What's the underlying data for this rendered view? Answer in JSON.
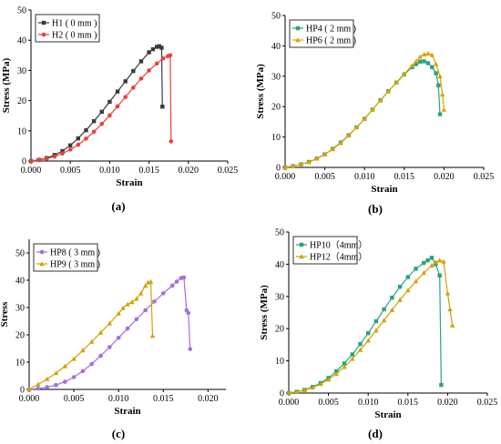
{
  "chart_data": [
    {
      "panel": "a",
      "caption": "(a)",
      "type": "line",
      "xlabel": "Strain",
      "ylabel": "Stress (MPa)",
      "xlim": [
        0,
        0.025
      ],
      "ylim": [
        0,
        50
      ],
      "xticks": [
        "0.000",
        "0.005",
        "0.010",
        "0.015",
        "0.020",
        "0.025"
      ],
      "yticks": [
        "0",
        "10",
        "20",
        "30",
        "40",
        "50"
      ],
      "legend_position": "top-left",
      "series": [
        {
          "name": "H1 ( 0 mm )",
          "color": "#3a3a3a",
          "marker": "square",
          "x": [
            0,
            0.001,
            0.002,
            0.003,
            0.004,
            0.005,
            0.006,
            0.007,
            0.008,
            0.009,
            0.01,
            0.011,
            0.012,
            0.013,
            0.014,
            0.015,
            0.0155,
            0.016,
            0.0163,
            0.0166,
            0.0167
          ],
          "y": [
            0,
            0.4,
            1.0,
            2.0,
            3.3,
            5.2,
            7.5,
            10.2,
            13.2,
            16.3,
            19.6,
            23.0,
            26.4,
            29.8,
            33.0,
            36.0,
            37.0,
            37.8,
            38.0,
            37.5,
            18.0
          ]
        },
        {
          "name": "H2 ( 0 mm )",
          "color": "#e8403a",
          "marker": "circle",
          "x": [
            0,
            0.001,
            0.002,
            0.003,
            0.004,
            0.005,
            0.006,
            0.007,
            0.008,
            0.009,
            0.01,
            0.011,
            0.012,
            0.013,
            0.014,
            0.015,
            0.016,
            0.0168,
            0.0174,
            0.0177,
            0.0178
          ],
          "y": [
            0,
            0.3,
            0.8,
            1.5,
            2.5,
            3.8,
            5.4,
            7.4,
            9.7,
            12.3,
            15.1,
            18.1,
            21.2,
            24.3,
            27.3,
            30.0,
            32.3,
            34.0,
            34.7,
            35.0,
            6.5
          ]
        }
      ]
    },
    {
      "panel": "b",
      "caption": "(b)",
      "type": "line",
      "xlabel": "Strain",
      "ylabel": "Stress (MPa)",
      "xlim": [
        0,
        0.025
      ],
      "ylim": [
        0,
        50
      ],
      "xticks": [
        "0.000",
        "0.005",
        "0.010",
        "0.015",
        "0.020",
        "0.025"
      ],
      "yticks": [
        "0",
        "10",
        "20",
        "30",
        "40",
        "50"
      ],
      "legend_position": "top-left",
      "series": [
        {
          "name": "HP4 ( 2 mm )",
          "color": "#26a67a",
          "marker": "square",
          "x": [
            0,
            0.001,
            0.002,
            0.003,
            0.004,
            0.005,
            0.006,
            0.007,
            0.008,
            0.009,
            0.01,
            0.011,
            0.012,
            0.013,
            0.014,
            0.015,
            0.016,
            0.0165,
            0.017,
            0.0175,
            0.018,
            0.0185,
            0.019,
            0.0193,
            0.0195
          ],
          "y": [
            0,
            0.4,
            1.0,
            1.8,
            2.9,
            4.3,
            6.1,
            8.2,
            10.6,
            13.2,
            16.0,
            19.0,
            22.1,
            25.1,
            27.9,
            30.6,
            33.0,
            34.0,
            34.8,
            34.9,
            34.3,
            33.0,
            31.0,
            27.0,
            17.5
          ]
        },
        {
          "name": "HP6 ( 2 mm )",
          "color": "#e0a100",
          "marker": "triangle",
          "x": [
            0,
            0.001,
            0.002,
            0.003,
            0.004,
            0.005,
            0.006,
            0.007,
            0.008,
            0.009,
            0.01,
            0.011,
            0.012,
            0.013,
            0.014,
            0.015,
            0.016,
            0.0165,
            0.017,
            0.0175,
            0.018,
            0.0185,
            0.019,
            0.0195,
            0.0198,
            0.02
          ],
          "y": [
            0,
            0.4,
            1.0,
            1.8,
            2.9,
            4.3,
            6.0,
            8.0,
            10.5,
            13.2,
            16.0,
            19.0,
            22.0,
            25.0,
            28.0,
            30.8,
            33.5,
            35.0,
            36.4,
            37.2,
            37.5,
            37.0,
            34.0,
            30.0,
            24.0,
            19.0
          ]
        }
      ]
    },
    {
      "panel": "c",
      "caption": "(c)",
      "type": "line",
      "xlabel": "Strain",
      "ylabel": "Stress",
      "xlim": [
        0,
        0.022
      ],
      "ylim": [
        0,
        55
      ],
      "xticks": [
        "0.000",
        "0.005",
        "0.010",
        "0.015",
        "0.020"
      ],
      "yticks": [
        "0",
        "10",
        "20",
        "30",
        "40",
        "50"
      ],
      "legend_position": "top-left",
      "series": [
        {
          "name": "HP8 ( 3 mm )",
          "color": "#a66ee0",
          "marker": "circle",
          "x": [
            0,
            0.001,
            0.002,
            0.003,
            0.004,
            0.005,
            0.006,
            0.007,
            0.008,
            0.009,
            0.01,
            0.011,
            0.012,
            0.013,
            0.014,
            0.015,
            0.016,
            0.0165,
            0.017,
            0.0173,
            0.0176,
            0.0178,
            0.018
          ],
          "y": [
            0,
            0.3,
            0.8,
            1.6,
            2.8,
            4.5,
            6.7,
            9.3,
            12.3,
            15.5,
            18.9,
            22.3,
            25.7,
            29.0,
            32.2,
            35.2,
            38.0,
            39.5,
            40.8,
            41.0,
            29.0,
            28.0,
            14.8
          ]
        },
        {
          "name": "HP9 ( 3 mm )",
          "color": "#d6a000",
          "marker": "triangle",
          "x": [
            0,
            0.001,
            0.002,
            0.003,
            0.004,
            0.005,
            0.006,
            0.007,
            0.008,
            0.009,
            0.01,
            0.0105,
            0.011,
            0.0115,
            0.012,
            0.0125,
            0.013,
            0.0133,
            0.0136,
            0.0138
          ],
          "y": [
            0,
            1.8,
            3.8,
            6.0,
            8.5,
            11.2,
            14.3,
            17.5,
            20.8,
            24.2,
            27.8,
            29.8,
            31.2,
            32.0,
            33.2,
            35.2,
            38.0,
            39.2,
            39.5,
            19.6
          ]
        }
      ]
    },
    {
      "panel": "d",
      "caption": "(d)",
      "type": "line",
      "xlabel": "Strain",
      "ylabel": "Stress (MPa)",
      "xlim": [
        0,
        0.025
      ],
      "ylim": [
        0,
        50
      ],
      "xticks": [
        "0.000",
        "0.005",
        "0.010",
        "0.015",
        "0.020",
        "0.025"
      ],
      "yticks": [
        "0",
        "10",
        "20",
        "30",
        "40",
        "50"
      ],
      "legend_position": "top-left",
      "series": [
        {
          "name": "HP10（4mm）",
          "color": "#26a67a",
          "marker": "square",
          "x": [
            0,
            0.001,
            0.002,
            0.003,
            0.004,
            0.005,
            0.006,
            0.007,
            0.008,
            0.009,
            0.01,
            0.011,
            0.012,
            0.013,
            0.014,
            0.015,
            0.016,
            0.017,
            0.0175,
            0.018,
            0.0185,
            0.019,
            0.0192
          ],
          "y": [
            0,
            0.4,
            1.0,
            1.9,
            3.1,
            4.7,
            6.8,
            9.2,
            12.0,
            15.2,
            18.6,
            22.3,
            26.0,
            29.6,
            33.0,
            36.0,
            38.6,
            40.4,
            41.2,
            42.0,
            40.0,
            36.5,
            2.5
          ]
        },
        {
          "name": "HP12（4mm）",
          "color": "#d6a000",
          "marker": "triangle",
          "x": [
            0,
            0.001,
            0.002,
            0.003,
            0.004,
            0.005,
            0.006,
            0.007,
            0.008,
            0.009,
            0.01,
            0.011,
            0.012,
            0.013,
            0.014,
            0.015,
            0.016,
            0.017,
            0.018,
            0.0185,
            0.019,
            0.0195,
            0.02,
            0.0203,
            0.0206
          ],
          "y": [
            0,
            0.4,
            0.9,
            1.7,
            2.8,
            4.2,
            6.0,
            8.1,
            10.6,
            13.4,
            16.3,
            19.4,
            22.6,
            25.8,
            28.9,
            31.9,
            34.7,
            37.3,
            39.6,
            40.6,
            41.2,
            40.8,
            31.0,
            26.0,
            21.0
          ]
        }
      ]
    }
  ]
}
